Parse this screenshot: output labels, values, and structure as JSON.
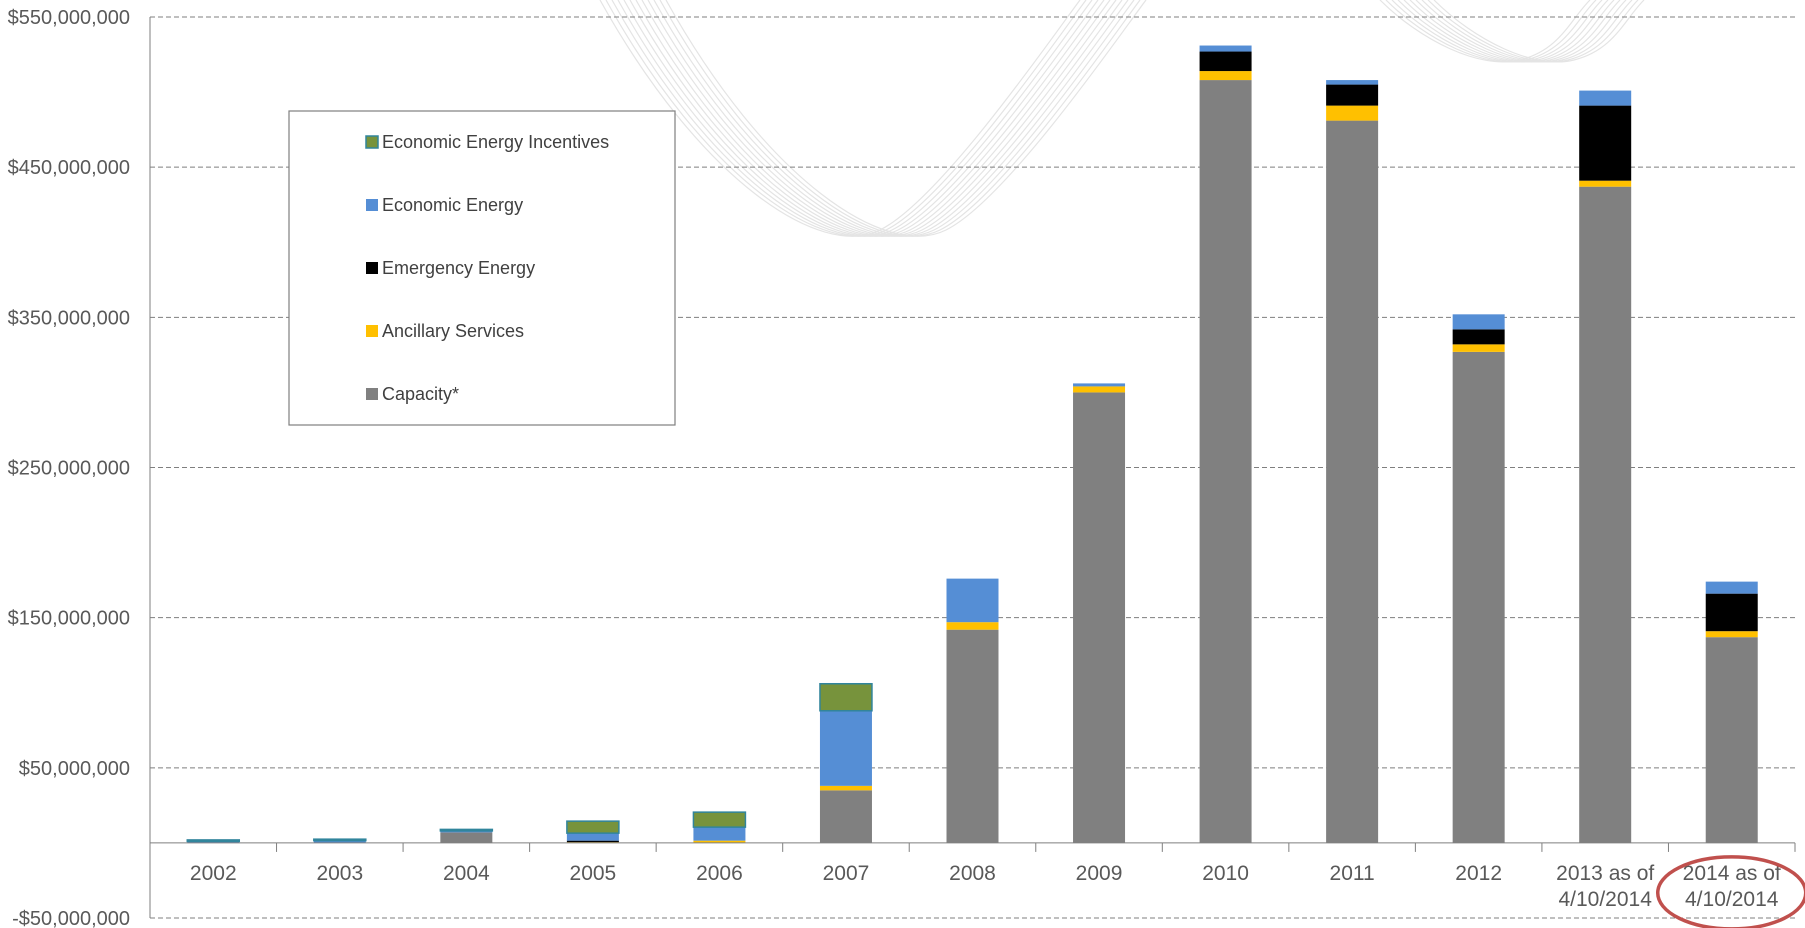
{
  "chart_data": {
    "type": "bar",
    "stacked": true,
    "categories": [
      "2002",
      "2003",
      "2004",
      "2005",
      "2006",
      "2007",
      "2008",
      "2009",
      "2010",
      "2011",
      "2012",
      "2013 as of 4/10/2014",
      "2014 as of 4/10/2014"
    ],
    "highlighted_category": "2014 as of 4/10/2014",
    "ylim": [
      -50000000,
      550000000
    ],
    "yticks": [
      -50000000,
      50000000,
      150000000,
      250000000,
      350000000,
      450000000,
      550000000
    ],
    "ytick_labels": [
      "-$50,000,000",
      "$50,000,000",
      "$150,000,000",
      "$250,000,000",
      "$350,000,000",
      "$450,000,000",
      "$550,000,000"
    ],
    "grid": true,
    "legend_position": "upper-left",
    "series": [
      {
        "name": "Capacity*",
        "color": "#808080",
        "values": [
          0,
          0,
          7000000,
          0,
          0,
          35000000,
          142000000,
          300000000,
          508000000,
          481000000,
          327000000,
          437000000,
          137000000
        ]
      },
      {
        "name": "Ancillary Services",
        "color": "#FFC000",
        "values": [
          0,
          0,
          0,
          500000,
          1500000,
          3000000,
          5000000,
          4000000,
          6000000,
          10000000,
          5000000,
          4000000,
          4000000
        ]
      },
      {
        "name": "Emergency Energy",
        "color": "#000000",
        "values": [
          0,
          0,
          0,
          1000000,
          0,
          0,
          0,
          0,
          13000000,
          14000000,
          10000000,
          50000000,
          25000000
        ]
      },
      {
        "name": "Economic Energy",
        "color": "#558ED5",
        "values": [
          1000000,
          1500000,
          1000000,
          5000000,
          9000000,
          50000000,
          29000000,
          2000000,
          4000000,
          3000000,
          10000000,
          10000000,
          8000000
        ]
      },
      {
        "name": "Economic Energy Incentives",
        "color": "#77933C",
        "values": [
          1000000,
          1000000,
          1000000,
          8000000,
          10000000,
          18000000,
          0,
          0,
          0,
          0,
          0,
          0,
          0
        ]
      }
    ]
  }
}
